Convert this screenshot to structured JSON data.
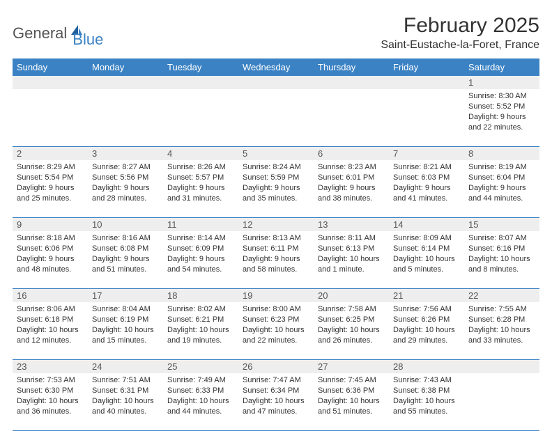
{
  "logo": {
    "text1": "General",
    "text2": "Blue"
  },
  "title": "February 2025",
  "location": "Saint-Eustache-la-Foret, France",
  "colors": {
    "header_bg": "#3b82c4",
    "header_text": "#ffffff",
    "daynum_bg": "#eeeeee",
    "border": "#3b82c4",
    "background": "#ffffff",
    "text": "#333333"
  },
  "dayNames": [
    "Sunday",
    "Monday",
    "Tuesday",
    "Wednesday",
    "Thursday",
    "Friday",
    "Saturday"
  ],
  "weeks": [
    [
      {
        "n": "",
        "sr": "",
        "ss": "",
        "dl": ""
      },
      {
        "n": "",
        "sr": "",
        "ss": "",
        "dl": ""
      },
      {
        "n": "",
        "sr": "",
        "ss": "",
        "dl": ""
      },
      {
        "n": "",
        "sr": "",
        "ss": "",
        "dl": ""
      },
      {
        "n": "",
        "sr": "",
        "ss": "",
        "dl": ""
      },
      {
        "n": "",
        "sr": "",
        "ss": "",
        "dl": ""
      },
      {
        "n": "1",
        "sr": "Sunrise: 8:30 AM",
        "ss": "Sunset: 5:52 PM",
        "dl": "Daylight: 9 hours and 22 minutes."
      }
    ],
    [
      {
        "n": "2",
        "sr": "Sunrise: 8:29 AM",
        "ss": "Sunset: 5:54 PM",
        "dl": "Daylight: 9 hours and 25 minutes."
      },
      {
        "n": "3",
        "sr": "Sunrise: 8:27 AM",
        "ss": "Sunset: 5:56 PM",
        "dl": "Daylight: 9 hours and 28 minutes."
      },
      {
        "n": "4",
        "sr": "Sunrise: 8:26 AM",
        "ss": "Sunset: 5:57 PM",
        "dl": "Daylight: 9 hours and 31 minutes."
      },
      {
        "n": "5",
        "sr": "Sunrise: 8:24 AM",
        "ss": "Sunset: 5:59 PM",
        "dl": "Daylight: 9 hours and 35 minutes."
      },
      {
        "n": "6",
        "sr": "Sunrise: 8:23 AM",
        "ss": "Sunset: 6:01 PM",
        "dl": "Daylight: 9 hours and 38 minutes."
      },
      {
        "n": "7",
        "sr": "Sunrise: 8:21 AM",
        "ss": "Sunset: 6:03 PM",
        "dl": "Daylight: 9 hours and 41 minutes."
      },
      {
        "n": "8",
        "sr": "Sunrise: 8:19 AM",
        "ss": "Sunset: 6:04 PM",
        "dl": "Daylight: 9 hours and 44 minutes."
      }
    ],
    [
      {
        "n": "9",
        "sr": "Sunrise: 8:18 AM",
        "ss": "Sunset: 6:06 PM",
        "dl": "Daylight: 9 hours and 48 minutes."
      },
      {
        "n": "10",
        "sr": "Sunrise: 8:16 AM",
        "ss": "Sunset: 6:08 PM",
        "dl": "Daylight: 9 hours and 51 minutes."
      },
      {
        "n": "11",
        "sr": "Sunrise: 8:14 AM",
        "ss": "Sunset: 6:09 PM",
        "dl": "Daylight: 9 hours and 54 minutes."
      },
      {
        "n": "12",
        "sr": "Sunrise: 8:13 AM",
        "ss": "Sunset: 6:11 PM",
        "dl": "Daylight: 9 hours and 58 minutes."
      },
      {
        "n": "13",
        "sr": "Sunrise: 8:11 AM",
        "ss": "Sunset: 6:13 PM",
        "dl": "Daylight: 10 hours and 1 minute."
      },
      {
        "n": "14",
        "sr": "Sunrise: 8:09 AM",
        "ss": "Sunset: 6:14 PM",
        "dl": "Daylight: 10 hours and 5 minutes."
      },
      {
        "n": "15",
        "sr": "Sunrise: 8:07 AM",
        "ss": "Sunset: 6:16 PM",
        "dl": "Daylight: 10 hours and 8 minutes."
      }
    ],
    [
      {
        "n": "16",
        "sr": "Sunrise: 8:06 AM",
        "ss": "Sunset: 6:18 PM",
        "dl": "Daylight: 10 hours and 12 minutes."
      },
      {
        "n": "17",
        "sr": "Sunrise: 8:04 AM",
        "ss": "Sunset: 6:19 PM",
        "dl": "Daylight: 10 hours and 15 minutes."
      },
      {
        "n": "18",
        "sr": "Sunrise: 8:02 AM",
        "ss": "Sunset: 6:21 PM",
        "dl": "Daylight: 10 hours and 19 minutes."
      },
      {
        "n": "19",
        "sr": "Sunrise: 8:00 AM",
        "ss": "Sunset: 6:23 PM",
        "dl": "Daylight: 10 hours and 22 minutes."
      },
      {
        "n": "20",
        "sr": "Sunrise: 7:58 AM",
        "ss": "Sunset: 6:25 PM",
        "dl": "Daylight: 10 hours and 26 minutes."
      },
      {
        "n": "21",
        "sr": "Sunrise: 7:56 AM",
        "ss": "Sunset: 6:26 PM",
        "dl": "Daylight: 10 hours and 29 minutes."
      },
      {
        "n": "22",
        "sr": "Sunrise: 7:55 AM",
        "ss": "Sunset: 6:28 PM",
        "dl": "Daylight: 10 hours and 33 minutes."
      }
    ],
    [
      {
        "n": "23",
        "sr": "Sunrise: 7:53 AM",
        "ss": "Sunset: 6:30 PM",
        "dl": "Daylight: 10 hours and 36 minutes."
      },
      {
        "n": "24",
        "sr": "Sunrise: 7:51 AM",
        "ss": "Sunset: 6:31 PM",
        "dl": "Daylight: 10 hours and 40 minutes."
      },
      {
        "n": "25",
        "sr": "Sunrise: 7:49 AM",
        "ss": "Sunset: 6:33 PM",
        "dl": "Daylight: 10 hours and 44 minutes."
      },
      {
        "n": "26",
        "sr": "Sunrise: 7:47 AM",
        "ss": "Sunset: 6:34 PM",
        "dl": "Daylight: 10 hours and 47 minutes."
      },
      {
        "n": "27",
        "sr": "Sunrise: 7:45 AM",
        "ss": "Sunset: 6:36 PM",
        "dl": "Daylight: 10 hours and 51 minutes."
      },
      {
        "n": "28",
        "sr": "Sunrise: 7:43 AM",
        "ss": "Sunset: 6:38 PM",
        "dl": "Daylight: 10 hours and 55 minutes."
      },
      {
        "n": "",
        "sr": "",
        "ss": "",
        "dl": ""
      }
    ]
  ]
}
